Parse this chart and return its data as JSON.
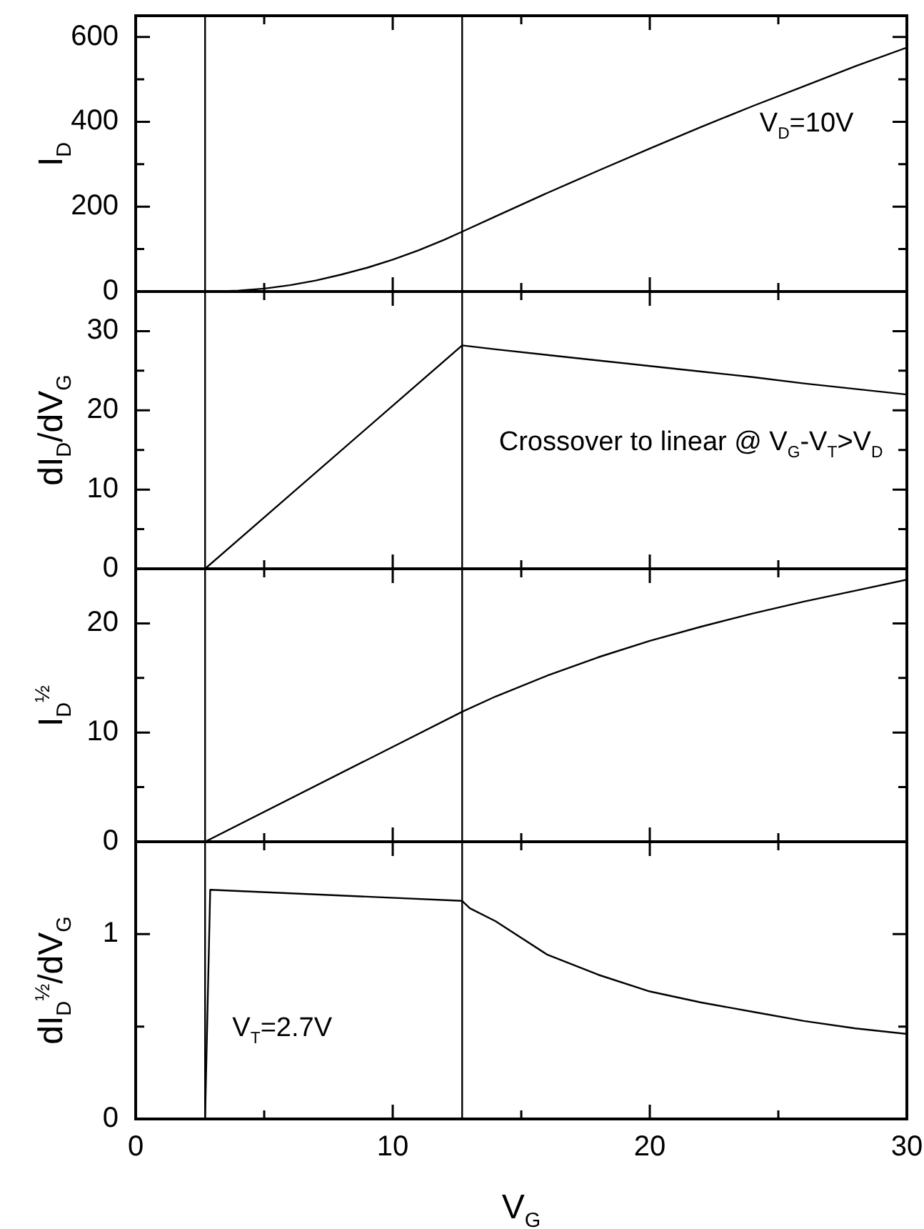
{
  "chart_data": [
    {
      "type": "line",
      "ylabel": "I$_{D}$",
      "annotations": [
        "V$_{D}$=10V"
      ],
      "xlim": [
        0,
        30
      ],
      "xticks": [
        0,
        {
          "value": 5,
          "label": null
        },
        10,
        {
          "value": 15,
          "label": null
        },
        20,
        {
          "value": 25,
          "label": null
        },
        30
      ],
      "ylim": [
        0,
        650
      ],
      "yticks": [
        0,
        {
          "value": 100,
          "label": null
        },
        200,
        {
          "value": 300,
          "label": null
        },
        400,
        {
          "value": 500,
          "label": null
        },
        600
      ],
      "tick_labels": "y",
      "grid": false,
      "legend": false,
      "marker": "none",
      "line_style": "solid",
      "ref_lines": [
        {
          "axis": "x",
          "value": 2.7,
          "label": null
        },
        {
          "axis": "x",
          "value": 12.7,
          "label": null
        }
      ],
      "series": [
        {
          "color": "#000000",
          "x": [
            0,
            2.7,
            3,
            4,
            5,
            6,
            7,
            8,
            9,
            10,
            11,
            12,
            12.7,
            14,
            16,
            18,
            20,
            22,
            24,
            26,
            28,
            30
          ],
          "values": [
            0,
            0,
            0,
            2,
            7,
            15,
            26,
            40,
            56,
            75,
            97,
            122,
            141,
            177,
            232,
            285,
            337,
            388,
            437,
            484,
            531,
            575
          ]
        }
      ]
    },
    {
      "type": "line",
      "ylabel": "dI$_{D}$/dV$_{G}$",
      "annotations": [
        "Crossover to linear @ V$_{G}$-V$_{T}$>V$_{D}$"
      ],
      "xlim": [
        0,
        30
      ],
      "xticks": [
        0,
        {
          "value": 5,
          "label": null
        },
        10,
        {
          "value": 15,
          "label": null
        },
        20,
        {
          "value": 25,
          "label": null
        },
        30
      ],
      "ylim": [
        0,
        35
      ],
      "yticks": [
        0,
        {
          "value": 5,
          "label": null
        },
        10,
        {
          "value": 15,
          "label": null
        },
        20,
        {
          "value": 25,
          "label": null
        },
        30
      ],
      "tick_labels": "y",
      "grid": false,
      "legend": false,
      "marker": "none",
      "line_style": "solid",
      "ref_lines": [
        {
          "axis": "x",
          "value": 2.7,
          "label": null
        },
        {
          "axis": "x",
          "value": 12.7,
          "label": null
        }
      ],
      "series": [
        {
          "color": "#000000",
          "x": [
            2.7,
            12.7,
            14,
            16,
            18,
            20,
            22,
            24,
            26,
            28,
            30
          ],
          "values": [
            0,
            28.2,
            27.7,
            27.0,
            26.3,
            25.6,
            24.9,
            24.2,
            23.4,
            22.7,
            22.0
          ]
        }
      ]
    },
    {
      "type": "line",
      "ylabel": "I$_{D}$$^{½}$",
      "xlim": [
        0,
        30
      ],
      "xticks": [
        0,
        {
          "value": 5,
          "label": null
        },
        10,
        {
          "value": 15,
          "label": null
        },
        20,
        {
          "value": 25,
          "label": null
        },
        30
      ],
      "ylim": [
        0,
        25
      ],
      "yticks": [
        0,
        {
          "value": 5,
          "label": null
        },
        10,
        {
          "value": 15,
          "label": null
        },
        20
      ],
      "tick_labels": "y",
      "grid": false,
      "legend": false,
      "marker": "none",
      "line_style": "solid",
      "ref_lines": [
        {
          "axis": "x",
          "value": 2.7,
          "label": null
        },
        {
          "axis": "x",
          "value": 12.7,
          "label": null
        }
      ],
      "series": [
        {
          "color": "#000000",
          "x": [
            2.7,
            12.7,
            14,
            16,
            18,
            20,
            22,
            24,
            26,
            28,
            30
          ],
          "values": [
            0,
            11.9,
            13.3,
            15.2,
            16.9,
            18.4,
            19.7,
            20.9,
            22.0,
            23.0,
            24.0
          ]
        }
      ]
    },
    {
      "type": "line",
      "ylabel": "dI$_{D}$$^{½}$/dV$_{G}$",
      "xlabel": "V$_{G}$",
      "annotations": [
        "V$_{T}$=2.7V"
      ],
      "xlim": [
        0,
        30
      ],
      "xticks": [
        0,
        {
          "value": 5,
          "label": null
        },
        10,
        {
          "value": 15,
          "label": null
        },
        20,
        {
          "value": 25,
          "label": null
        },
        30
      ],
      "ylim": [
        0,
        1.5
      ],
      "yticks": [
        0,
        {
          "value": 0.5,
          "label": null
        },
        1
      ],
      "grid": false,
      "legend": false,
      "marker": "none",
      "line_style": "solid",
      "ref_lines": [
        {
          "axis": "x",
          "value": 2.7,
          "label": null
        },
        {
          "axis": "x",
          "value": 12.7,
          "label": null
        }
      ],
      "series": [
        {
          "color": "#000000",
          "x": [
            2.7,
            2.9,
            12.7,
            13,
            14,
            16,
            18,
            20,
            22,
            24,
            26,
            28,
            30
          ],
          "values": [
            0,
            1.24,
            1.18,
            1.14,
            1.07,
            0.89,
            0.78,
            0.69,
            0.63,
            0.58,
            0.53,
            0.49,
            0.46
          ]
        }
      ]
    }
  ]
}
